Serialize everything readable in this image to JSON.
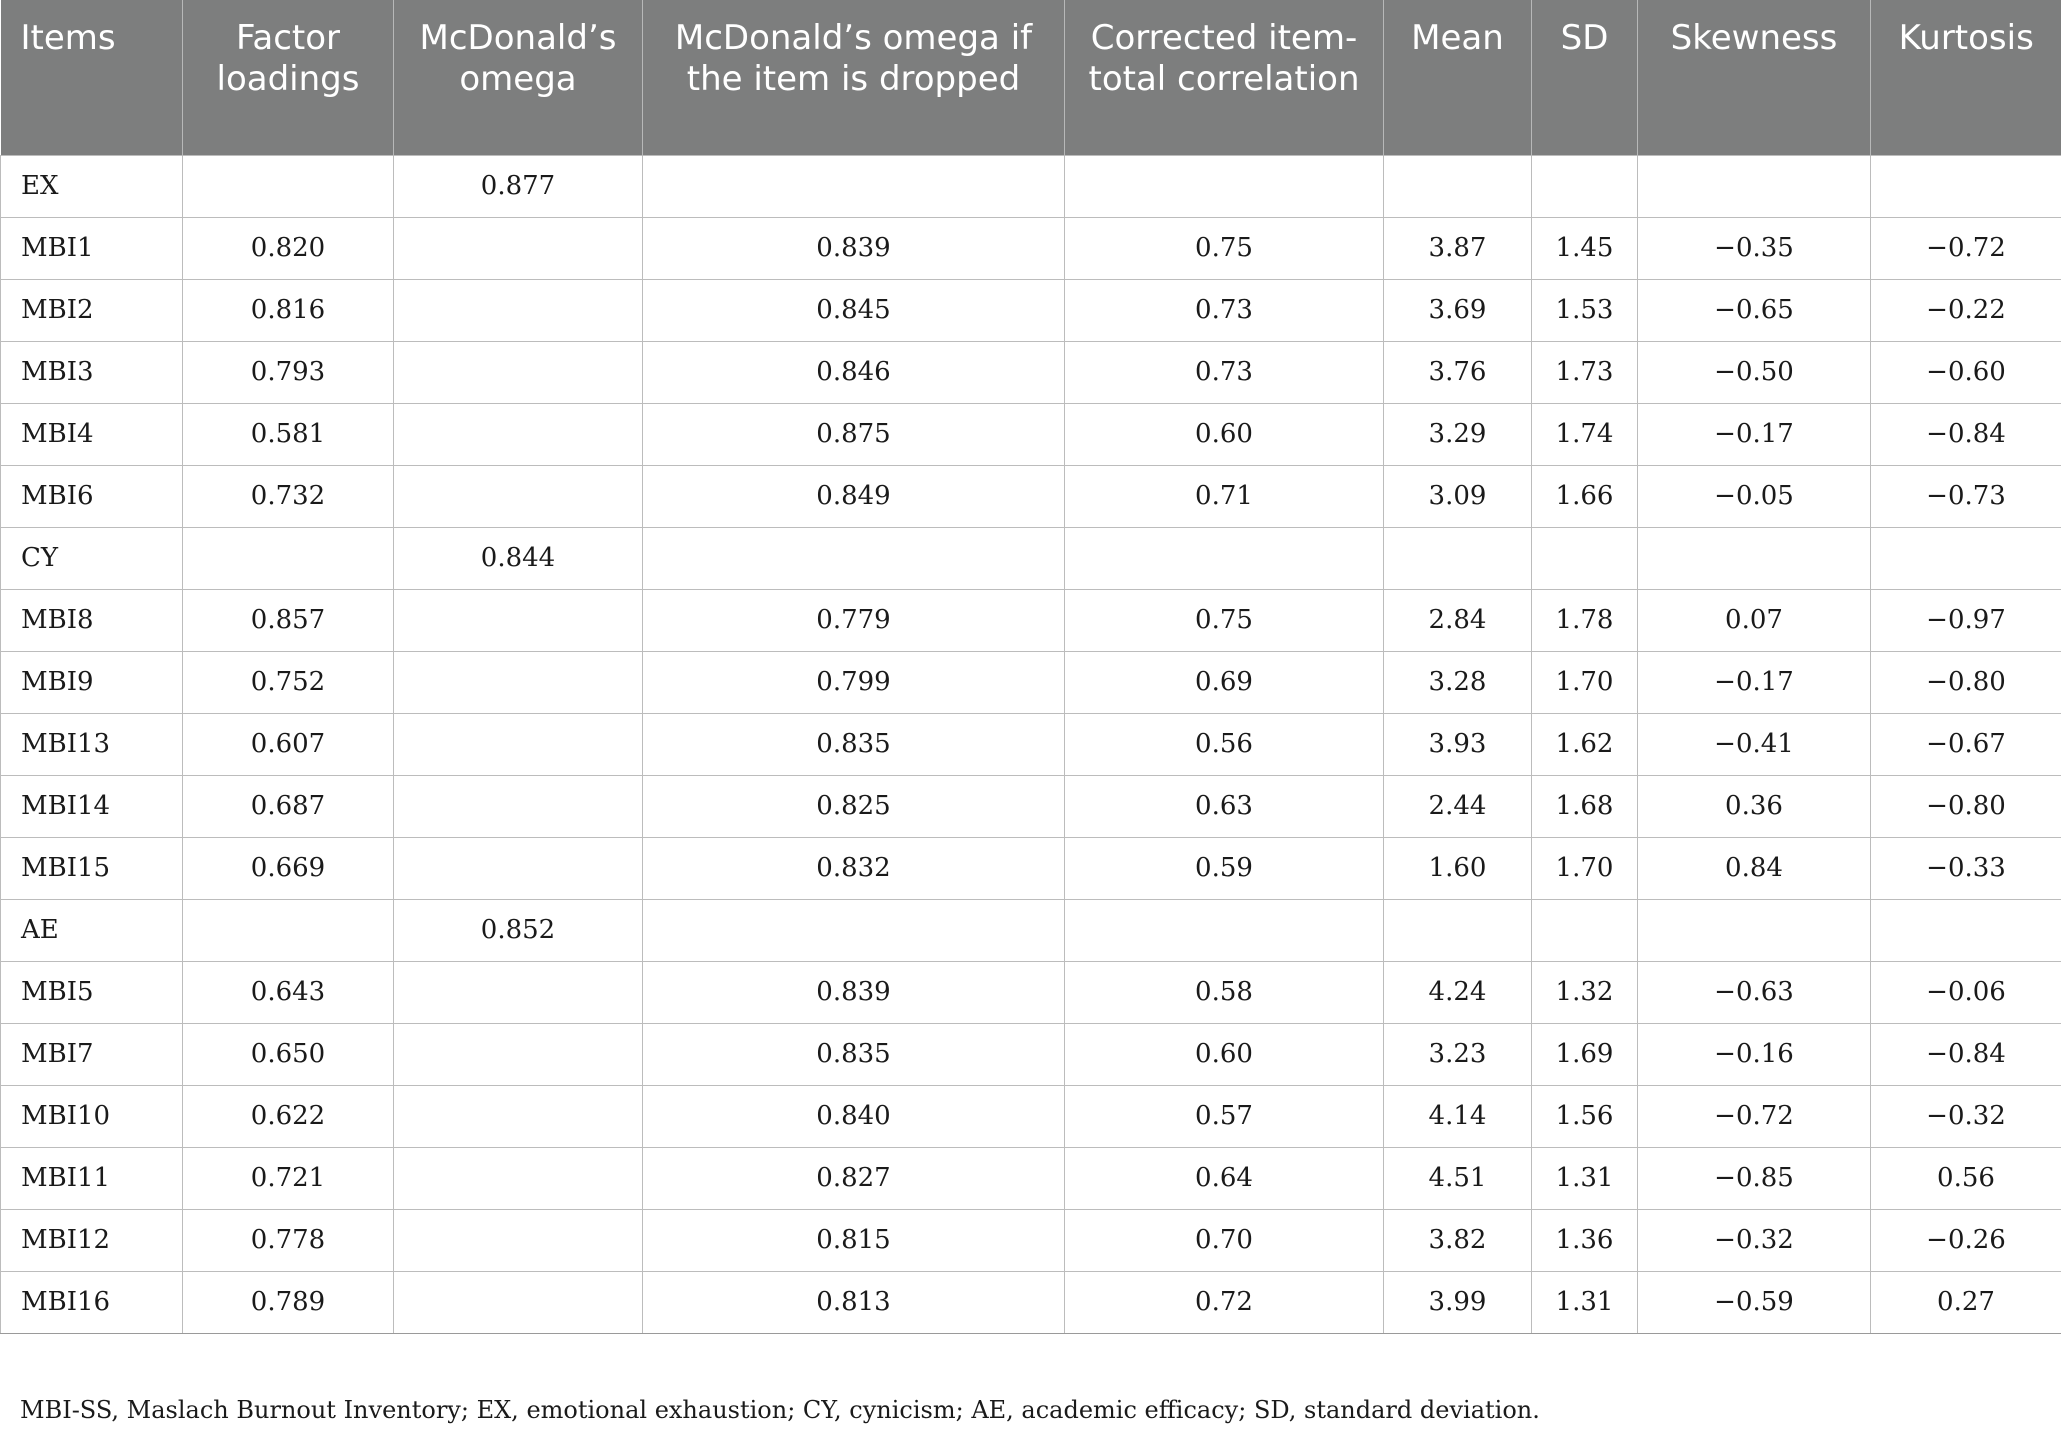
{
  "table": {
    "headers": [
      "Items",
      "Factor loadings",
      "McDonald’s omega",
      "McDonald’s omega if the item is dropped",
      "Corrected item-total correlation",
      "Mean",
      "SD",
      "Skewness",
      "Kurtosis"
    ],
    "rows": [
      [
        "EX",
        "",
        "0.877",
        "",
        "",
        "",
        "",
        "",
        ""
      ],
      [
        "MBI1",
        "0.820",
        "",
        "0.839",
        "0.75",
        "3.87",
        "1.45",
        "−0.35",
        "−0.72"
      ],
      [
        "MBI2",
        "0.816",
        "",
        "0.845",
        "0.73",
        "3.69",
        "1.53",
        "−0.65",
        "−0.22"
      ],
      [
        "MBI3",
        "0.793",
        "",
        "0.846",
        "0.73",
        "3.76",
        "1.73",
        "−0.50",
        "−0.60"
      ],
      [
        "MBI4",
        "0.581",
        "",
        "0.875",
        "0.60",
        "3.29",
        "1.74",
        "−0.17",
        "−0.84"
      ],
      [
        "MBI6",
        "0.732",
        "",
        "0.849",
        "0.71",
        "3.09",
        "1.66",
        "−0.05",
        "−0.73"
      ],
      [
        "CY",
        "",
        "0.844",
        "",
        "",
        "",
        "",
        "",
        ""
      ],
      [
        "MBI8",
        "0.857",
        "",
        "0.779",
        "0.75",
        "2.84",
        "1.78",
        "0.07",
        "−0.97"
      ],
      [
        "MBI9",
        "0.752",
        "",
        "0.799",
        "0.69",
        "3.28",
        "1.70",
        "−0.17",
        "−0.80"
      ],
      [
        "MBI13",
        "0.607",
        "",
        "0.835",
        "0.56",
        "3.93",
        "1.62",
        "−0.41",
        "−0.67"
      ],
      [
        "MBI14",
        "0.687",
        "",
        "0.825",
        "0.63",
        "2.44",
        "1.68",
        "0.36",
        "−0.80"
      ],
      [
        "MBI15",
        "0.669",
        "",
        "0.832",
        "0.59",
        "1.60",
        "1.70",
        "0.84",
        "−0.33"
      ],
      [
        "AE",
        "",
        "0.852",
        "",
        "",
        "",
        "",
        "",
        ""
      ],
      [
        "MBI5",
        "0.643",
        "",
        "0.839",
        "0.58",
        "4.24",
        "1.32",
        "−0.63",
        "−0.06"
      ],
      [
        "MBI7",
        "0.650",
        "",
        "0.835",
        "0.60",
        "3.23",
        "1.69",
        "−0.16",
        "−0.84"
      ],
      [
        "MBI10",
        "0.622",
        "",
        "0.840",
        "0.57",
        "4.14",
        "1.56",
        "−0.72",
        "−0.32"
      ],
      [
        "MBI11",
        "0.721",
        "",
        "0.827",
        "0.64",
        "4.51",
        "1.31",
        "−0.85",
        "0.56"
      ],
      [
        "MBI12",
        "0.778",
        "",
        "0.815",
        "0.70",
        "3.82",
        "1.36",
        "−0.32",
        "−0.26"
      ],
      [
        "MBI16",
        "0.789",
        "",
        "0.813",
        "0.72",
        "3.99",
        "1.31",
        "−0.59",
        "0.27"
      ]
    ]
  },
  "footnote": "MBI-SS, Maslach Burnout Inventory; EX, emotional exhaustion; CY, cynicism; AE, academic efficacy; SD, standard deviation.",
  "colors": {
    "header_bg": "#7d7e7e",
    "header_text": "#ffffff",
    "border": "#bcbcbc"
  }
}
